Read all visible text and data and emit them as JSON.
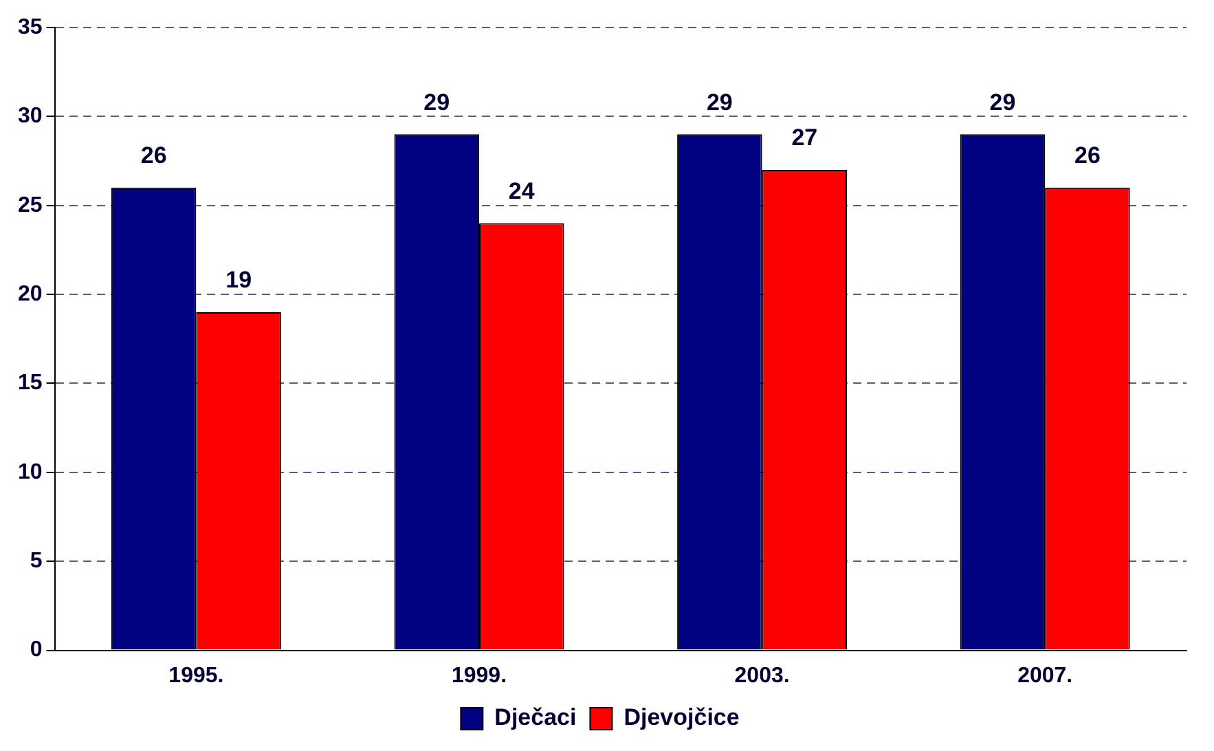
{
  "chart_data": {
    "type": "bar",
    "categories": [
      "1995.",
      "1999.",
      "2003.",
      "2007."
    ],
    "series": [
      {
        "name": "Dječaci",
        "color": "#000080",
        "values": [
          26,
          29,
          29,
          29
        ]
      },
      {
        "name": "Djevojčice",
        "color": "#ff0000",
        "values": [
          19,
          24,
          27,
          26
        ]
      }
    ],
    "ylim": [
      0,
      35
    ],
    "yticks": [
      0,
      5,
      10,
      15,
      20,
      25,
      30,
      35
    ],
    "grid": "y",
    "legend": "bottom",
    "data_labels": true
  }
}
